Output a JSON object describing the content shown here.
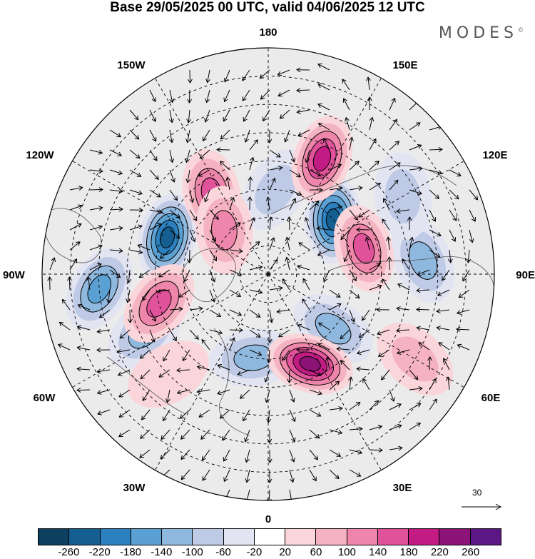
{
  "title": "Base 29/05/2025 00 UTC, valid 04/06/2025 12 UTC",
  "brand": "MODES",
  "brand_mark": "©",
  "longitude_labels": {
    "top": "180",
    "bottom": "0",
    "left": "90W",
    "right": "90E",
    "upper_left": "150W",
    "upper_right": "150E",
    "mid_upper_left": "120W",
    "mid_upper_right": "120E",
    "mid_lower_left": "60W",
    "mid_lower_right": "60E",
    "lower_left": "30W",
    "lower_right": "30E"
  },
  "vector_scale": {
    "label": "30",
    "icon": "reference-arrow-icon"
  },
  "colorbar": {
    "colors": [
      "#0d3f5f",
      "#145f90",
      "#2c80be",
      "#5aa0d2",
      "#8fb8de",
      "#bfcbe6",
      "#e3e4f2",
      "#ffffff",
      "#fad6db",
      "#f5b2c1",
      "#ee85aa",
      "#e0529a",
      "#c21c84",
      "#8c1477",
      "#5b1784"
    ],
    "ticks": [
      "-260",
      "-220",
      "-180",
      "-140",
      "-100",
      "-60",
      "-20",
      "20",
      "60",
      "100",
      "140",
      "180",
      "220",
      "260"
    ]
  },
  "map": {
    "projection": "north polar stereographic",
    "background": "#ebebeb",
    "anomalies": [
      {
        "id": "low-1",
        "lon": -110,
        "lat": 52,
        "value": -220
      },
      {
        "id": "low-2",
        "lon": 130,
        "lat": 60,
        "value": -220
      },
      {
        "id": "low-3",
        "lon": -85,
        "lat": 30,
        "value": -170
      },
      {
        "id": "low-4",
        "lon": 95,
        "lat": 35,
        "value": -120
      },
      {
        "id": "low-5",
        "lon": -10,
        "lat": 60,
        "value": -110
      },
      {
        "id": "low-6",
        "lon": 50,
        "lat": 60,
        "value": -130
      },
      {
        "id": "low-7",
        "lon": -65,
        "lat": 42,
        "value": -120
      },
      {
        "id": "low-8",
        "lon": 175,
        "lat": 60,
        "value": -90
      },
      {
        "id": "low-9",
        "lon": 120,
        "lat": 35,
        "value": -80
      },
      {
        "id": "high-1",
        "lon": 155,
        "lat": 45,
        "value": 210
      },
      {
        "id": "high-2",
        "lon": -75,
        "lat": 50,
        "value": 170
      },
      {
        "id": "high-3",
        "lon": 25,
        "lat": 55,
        "value": 220
      },
      {
        "id": "high-4",
        "lon": 105,
        "lat": 55,
        "value": 170
      },
      {
        "id": "high-5",
        "lon": -145,
        "lat": 55,
        "value": 160
      },
      {
        "id": "high-6",
        "lon": -135,
        "lat": 68,
        "value": 120
      },
      {
        "id": "high-7",
        "lon": 60,
        "lat": 30,
        "value": 60
      },
      {
        "id": "high-8",
        "lon": -45,
        "lat": 40,
        "value": 40
      }
    ]
  }
}
